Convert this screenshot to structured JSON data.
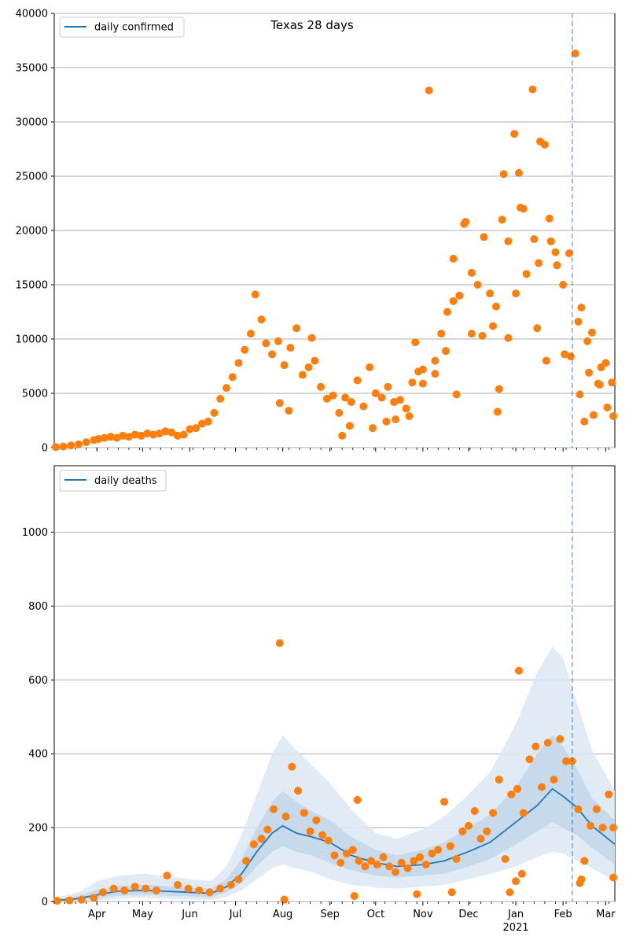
{
  "chart_data": [
    {
      "type": "scatter",
      "title": "Texas 28 days",
      "legend": {
        "position": "top-left",
        "label": "daily confirmed"
      },
      "ylim": [
        0,
        40000
      ],
      "yticks": [
        0,
        5000,
        10000,
        15000,
        20000,
        25000,
        30000,
        35000,
        40000
      ],
      "grid": "horizontal",
      "vline_date": "2021-02-07",
      "colors": {
        "line": "#1f77b4",
        "points": "#ff7f0e",
        "grid": "#b0b0b0"
      },
      "series": [
        {
          "kind": "line",
          "name": "daily confirmed",
          "note": "line hidden under points"
        },
        {
          "kind": "points",
          "x": [
            "2020-03-05",
            "2020-03-10",
            "2020-03-15",
            "2020-03-20",
            "2020-03-25",
            "2020-03-30",
            "2020-04-02",
            "2020-04-06",
            "2020-04-10",
            "2020-04-14",
            "2020-04-18",
            "2020-04-22",
            "2020-04-26",
            "2020-04-30",
            "2020-05-04",
            "2020-05-08",
            "2020-05-12",
            "2020-05-16",
            "2020-05-20",
            "2020-05-24",
            "2020-05-28",
            "2020-06-01",
            "2020-06-05",
            "2020-06-09",
            "2020-06-13",
            "2020-06-17",
            "2020-06-21",
            "2020-06-25",
            "2020-06-29",
            "2020-07-03",
            "2020-07-07",
            "2020-07-11",
            "2020-07-14",
            "2020-07-18",
            "2020-07-21",
            "2020-07-25",
            "2020-07-29",
            "2020-08-02",
            "2020-08-06",
            "2020-08-10",
            "2020-08-14",
            "2020-08-18",
            "2020-08-22",
            "2020-08-26",
            "2020-08-30",
            "2020-09-03",
            "2020-09-07",
            "2020-09-11",
            "2020-09-15",
            "2020-09-19",
            "2020-09-23",
            "2020-09-27",
            "2020-10-01",
            "2020-10-05",
            "2020-10-09",
            "2020-10-13",
            "2020-10-17",
            "2020-10-21",
            "2020-10-25",
            "2020-10-29",
            "2020-11-01",
            "2020-11-05",
            "2020-11-09",
            "2020-11-13",
            "2020-11-17",
            "2020-11-21",
            "2020-11-25",
            "2020-11-29",
            "2020-12-03",
            "2020-12-07",
            "2020-12-11",
            "2020-12-15",
            "2020-12-19",
            "2020-12-23",
            "2020-12-27",
            "2020-12-31",
            "2021-01-04",
            "2021-01-08",
            "2021-01-12",
            "2021-01-16",
            "2021-01-20",
            "2021-01-24",
            "2021-01-28",
            "2021-02-01",
            "2021-02-05",
            "2021-02-09",
            "2021-02-13",
            "2021-02-17",
            "2021-02-21",
            "2021-02-25",
            "2021-03-01",
            "2021-03-05"
          ],
          "values": [
            50,
            100,
            200,
            300,
            500,
            700,
            800,
            900,
            1000,
            900,
            1100,
            1000,
            1200,
            1100,
            1300,
            1200,
            1300,
            1500,
            1400,
            1100,
            1200,
            1700,
            1800,
            2200,
            2400,
            3200,
            4500,
            5500,
            6500,
            7800,
            9000,
            10500,
            14100,
            11800,
            9600,
            8600,
            9800,
            7600,
            9200,
            11000,
            6700,
            7400,
            8000,
            5600,
            4500,
            4800,
            3200,
            4600,
            4200,
            6200,
            3800,
            7400,
            5000,
            4600,
            5600,
            4200,
            4400,
            3600,
            6000,
            7000,
            7200,
            32900,
            8000,
            10500,
            12500,
            13500,
            14000,
            20800,
            10500,
            15000,
            19400,
            14200,
            13000,
            21000,
            19000,
            28900,
            22100,
            16000,
            33000,
            17000,
            27900,
            19000,
            16800,
            15000,
            17900,
            36300,
            12900,
            9800,
            3000,
            5800,
            7800,
            6000
          ],
          "extra_points": [
            {
              "x": "2020-07-30",
              "y": 4100
            },
            {
              "x": "2020-08-05",
              "y": 3400
            },
            {
              "x": "2020-08-20",
              "y": 10100
            },
            {
              "x": "2020-09-09",
              "y": 1100
            },
            {
              "x": "2020-09-14",
              "y": 2000
            },
            {
              "x": "2020-09-29",
              "y": 1800
            },
            {
              "x": "2020-10-08",
              "y": 2400
            },
            {
              "x": "2020-10-14",
              "y": 2600
            },
            {
              "x": "2020-10-23",
              "y": 2900
            },
            {
              "x": "2020-10-27",
              "y": 9700
            },
            {
              "x": "2020-11-01",
              "y": 5900
            },
            {
              "x": "2020-11-09",
              "y": 6800
            },
            {
              "x": "2020-11-16",
              "y": 8900
            },
            {
              "x": "2020-11-21",
              "y": 17400
            },
            {
              "x": "2020-11-23",
              "y": 4900
            },
            {
              "x": "2020-11-28",
              "y": 20600
            },
            {
              "x": "2020-12-03",
              "y": 16100
            },
            {
              "x": "2020-12-10",
              "y": 10300
            },
            {
              "x": "2020-12-17",
              "y": 11200
            },
            {
              "x": "2020-12-20",
              "y": 3300
            },
            {
              "x": "2020-12-21",
              "y": 5400
            },
            {
              "x": "2020-12-24",
              "y": 25200
            },
            {
              "x": "2020-12-27",
              "y": 10100
            },
            {
              "x": "2021-01-01",
              "y": 14200
            },
            {
              "x": "2021-01-03",
              "y": 25300
            },
            {
              "x": "2021-01-06",
              "y": 22000
            },
            {
              "x": "2021-01-13",
              "y": 19200
            },
            {
              "x": "2021-01-15",
              "y": 11000
            },
            {
              "x": "2021-01-17",
              "y": 28200
            },
            {
              "x": "2021-01-21",
              "y": 8000
            },
            {
              "x": "2021-01-23",
              "y": 21100
            },
            {
              "x": "2021-01-27",
              "y": 18000
            },
            {
              "x": "2021-02-02",
              "y": 8600
            },
            {
              "x": "2021-02-06",
              "y": 8400
            },
            {
              "x": "2021-02-11",
              "y": 11600
            },
            {
              "x": "2021-02-12",
              "y": 4900
            },
            {
              "x": "2021-02-15",
              "y": 2400
            },
            {
              "x": "2021-02-18",
              "y": 6900
            },
            {
              "x": "2021-02-20",
              "y": 10600
            },
            {
              "x": "2021-02-24",
              "y": 5900
            },
            {
              "x": "2021-02-26",
              "y": 7400
            },
            {
              "x": "2021-03-02",
              "y": 3700
            },
            {
              "x": "2021-03-06",
              "y": 2900
            }
          ]
        }
      ]
    },
    {
      "type": "line",
      "legend": {
        "position": "top-left",
        "label": "daily deaths"
      },
      "ylim": [
        0,
        1180
      ],
      "yticks": [
        0,
        200,
        400,
        600,
        800,
        1000
      ],
      "grid": "horizontal",
      "vline_date": "2021-02-07",
      "xlim": [
        "2020-03-04",
        "2021-03-07"
      ],
      "x_tick_labels": [
        "Apr",
        "May",
        "Jun",
        "Jul",
        "Aug",
        "Sep",
        "Oct",
        "Nov",
        "Dec",
        "Jan",
        "Feb",
        "Mar"
      ],
      "x_tick_dates": [
        "2020-04-01",
        "2020-05-01",
        "2020-06-01",
        "2020-07-01",
        "2020-08-01",
        "2020-09-01",
        "2020-10-01",
        "2020-11-01",
        "2020-12-01",
        "2021-01-01",
        "2021-02-01",
        "2021-03-01"
      ],
      "x_year_label": "2021",
      "colors": {
        "line": "#1f77b4",
        "points": "#ff7f0e",
        "band_outer": "#dce8f3",
        "band_inner": "#c2d7ea",
        "grid": "#b0b0b0"
      },
      "series": [
        {
          "kind": "line",
          "name": "daily deaths",
          "x": [
            "2020-03-05",
            "2020-03-20",
            "2020-04-01",
            "2020-04-15",
            "2020-05-01",
            "2020-05-15",
            "2020-06-01",
            "2020-06-15",
            "2020-06-25",
            "2020-07-05",
            "2020-07-15",
            "2020-07-25",
            "2020-08-01",
            "2020-08-10",
            "2020-08-20",
            "2020-09-01",
            "2020-09-15",
            "2020-10-01",
            "2020-10-15",
            "2020-11-01",
            "2020-11-15",
            "2020-12-01",
            "2020-12-15",
            "2021-01-01",
            "2021-01-15",
            "2021-01-25",
            "2021-02-01",
            "2021-02-10",
            "2021-02-20",
            "2021-03-07"
          ],
          "values": [
            3,
            8,
            18,
            28,
            30,
            28,
            25,
            22,
            40,
            75,
            135,
            185,
            205,
            185,
            175,
            160,
            125,
            105,
            95,
            100,
            110,
            135,
            160,
            215,
            260,
            305,
            285,
            255,
            205,
            155
          ]
        },
        {
          "kind": "band_outer",
          "x": [
            "2020-03-05",
            "2020-03-20",
            "2020-04-01",
            "2020-04-15",
            "2020-05-01",
            "2020-05-15",
            "2020-06-01",
            "2020-06-15",
            "2020-06-25",
            "2020-07-05",
            "2020-07-15",
            "2020-07-25",
            "2020-08-01",
            "2020-08-10",
            "2020-08-20",
            "2020-09-01",
            "2020-09-15",
            "2020-10-01",
            "2020-10-15",
            "2020-11-01",
            "2020-11-15",
            "2020-12-01",
            "2020-12-15",
            "2021-01-01",
            "2021-01-15",
            "2021-01-25",
            "2021-02-01",
            "2021-02-10",
            "2021-02-20",
            "2021-03-07"
          ],
          "lower": [
            0,
            0,
            2,
            8,
            10,
            8,
            6,
            5,
            12,
            30,
            60,
            90,
            100,
            90,
            80,
            60,
            45,
            38,
            35,
            40,
            45,
            60,
            75,
            95,
            120,
            135,
            130,
            110,
            90,
            55
          ],
          "upper": [
            10,
            25,
            55,
            70,
            75,
            70,
            60,
            55,
            95,
            180,
            290,
            400,
            450,
            410,
            370,
            320,
            250,
            185,
            170,
            195,
            230,
            290,
            350,
            480,
            620,
            690,
            660,
            540,
            410,
            300
          ]
        },
        {
          "kind": "band_inner",
          "x": [
            "2020-03-05",
            "2020-03-20",
            "2020-04-01",
            "2020-04-15",
            "2020-05-01",
            "2020-05-15",
            "2020-06-01",
            "2020-06-15",
            "2020-06-25",
            "2020-07-05",
            "2020-07-15",
            "2020-07-25",
            "2020-08-01",
            "2020-08-10",
            "2020-08-20",
            "2020-09-01",
            "2020-09-15",
            "2020-10-01",
            "2020-10-15",
            "2020-11-01",
            "2020-11-15",
            "2020-12-01",
            "2020-12-15",
            "2021-01-01",
            "2021-01-15",
            "2021-01-25",
            "2021-02-01",
            "2021-02-10",
            "2021-02-20",
            "2021-03-07"
          ],
          "lower": [
            0,
            3,
            8,
            16,
            18,
            16,
            14,
            12,
            25,
            50,
            95,
            135,
            150,
            135,
            125,
            105,
            85,
            70,
            65,
            70,
            75,
            95,
            115,
            155,
            190,
            215,
            200,
            180,
            145,
            100
          ],
          "upper": [
            6,
            15,
            32,
            42,
            45,
            42,
            38,
            35,
            60,
            115,
            200,
            270,
            300,
            270,
            245,
            220,
            175,
            140,
            125,
            140,
            160,
            200,
            235,
            310,
            400,
            450,
            420,
            360,
            280,
            220
          ]
        },
        {
          "kind": "points",
          "x": [
            "2020-03-06",
            "2020-03-14",
            "2020-03-22",
            "2020-03-30",
            "2020-04-05",
            "2020-04-12",
            "2020-04-19",
            "2020-04-26",
            "2020-05-03",
            "2020-05-10",
            "2020-05-17",
            "2020-05-24",
            "2020-05-31",
            "2020-06-07",
            "2020-06-14",
            "2020-06-21",
            "2020-06-28",
            "2020-07-03",
            "2020-07-08",
            "2020-07-13",
            "2020-07-18",
            "2020-07-22",
            "2020-07-26",
            "2020-07-30",
            "2020-08-03",
            "2020-08-07",
            "2020-08-11",
            "2020-08-15",
            "2020-08-19",
            "2020-08-23",
            "2020-08-27",
            "2020-08-31",
            "2020-09-04",
            "2020-09-08",
            "2020-09-12",
            "2020-09-16",
            "2020-09-20",
            "2020-09-24",
            "2020-09-28",
            "2020-10-02",
            "2020-10-06",
            "2020-10-10",
            "2020-10-14",
            "2020-10-18",
            "2020-10-22",
            "2020-10-26",
            "2020-10-30",
            "2020-11-03",
            "2020-11-07",
            "2020-11-11",
            "2020-11-15",
            "2020-11-19",
            "2020-11-23",
            "2020-11-27",
            "2020-12-01",
            "2020-12-05",
            "2020-12-09",
            "2020-12-13",
            "2020-12-17",
            "2020-12-21",
            "2020-12-25",
            "2020-12-29",
            "2021-01-02",
            "2021-01-06",
            "2021-01-10",
            "2021-01-14",
            "2021-01-18",
            "2021-01-22",
            "2021-01-26",
            "2021-01-30",
            "2021-02-03",
            "2021-02-07",
            "2021-02-11",
            "2021-02-15",
            "2021-02-19",
            "2021-02-23",
            "2021-02-27",
            "2021-03-03",
            "2021-03-06"
          ],
          "values": [
            2,
            3,
            5,
            10,
            25,
            35,
            30,
            40,
            35,
            30,
            70,
            45,
            35,
            30,
            25,
            35,
            45,
            60,
            110,
            155,
            170,
            195,
            250,
            700,
            230,
            365,
            300,
            240,
            190,
            220,
            180,
            165,
            125,
            105,
            130,
            140,
            110,
            95,
            110,
            100,
            120,
            95,
            80,
            105,
            90,
            110,
            120,
            100,
            130,
            140,
            270,
            150,
            115,
            190,
            205,
            245,
            170,
            190,
            240,
            330,
            115,
            290,
            305,
            240,
            385,
            420,
            310,
            430,
            330,
            440,
            380,
            380,
            250,
            110,
            205,
            250,
            200,
            290,
            200
          ],
          "extra_points": [
            {
              "x": "2020-08-02",
              "y": 5
            },
            {
              "x": "2020-09-17",
              "y": 15
            },
            {
              "x": "2020-09-19",
              "y": 275
            },
            {
              "x": "2020-10-28",
              "y": 20
            },
            {
              "x": "2020-11-20",
              "y": 25
            },
            {
              "x": "2020-12-28",
              "y": 25
            },
            {
              "x": "2021-01-03",
              "y": 625
            },
            {
              "x": "2021-01-01",
              "y": 55
            },
            {
              "x": "2021-01-05",
              "y": 75
            },
            {
              "x": "2021-02-12",
              "y": 50
            },
            {
              "x": "2021-02-13",
              "y": 60
            },
            {
              "x": "2021-03-06",
              "y": 65
            }
          ]
        }
      ]
    }
  ]
}
